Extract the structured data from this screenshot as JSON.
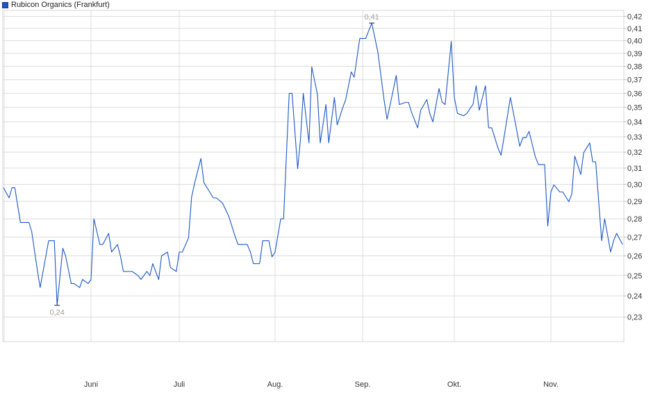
{
  "chart_data": {
    "type": "line",
    "title": "",
    "legend": [
      {
        "name": "Rubicon Organics (Frankfurt)",
        "color": "#1a56c4"
      }
    ],
    "legend_placement": "top-left",
    "y_scale": "log",
    "ylim": [
      0.219,
      0.425
    ],
    "y_axis_side": "right",
    "grid": true,
    "y_ticks": [
      {
        "value": 0.42,
        "label": "0,42"
      },
      {
        "value": 0.41,
        "label": "0,41"
      },
      {
        "value": 0.4,
        "label": "0,40"
      },
      {
        "value": 0.39,
        "label": "0,39"
      },
      {
        "value": 0.38,
        "label": "0,38"
      },
      {
        "value": 0.37,
        "label": "0,37"
      },
      {
        "value": 0.36,
        "label": "0,36"
      },
      {
        "value": 0.35,
        "label": "0,35"
      },
      {
        "value": 0.34,
        "label": "0,34"
      },
      {
        "value": 0.33,
        "label": "0,33"
      },
      {
        "value": 0.32,
        "label": "0,32"
      },
      {
        "value": 0.31,
        "label": "0,31"
      },
      {
        "value": 0.3,
        "label": "0,30"
      },
      {
        "value": 0.29,
        "label": "0,29"
      },
      {
        "value": 0.28,
        "label": "0,28"
      },
      {
        "value": 0.27,
        "label": "0,27"
      },
      {
        "value": 0.26,
        "label": "0,26"
      },
      {
        "value": 0.25,
        "label": "0,25"
      },
      {
        "value": 0.24,
        "label": "0,24"
      },
      {
        "value": 0.23,
        "label": "0,23"
      }
    ],
    "x_ticks": [
      {
        "month": 6,
        "label": "Juni"
      },
      {
        "month": 7,
        "label": "Juli"
      },
      {
        "month": 8,
        "label": "Aug."
      },
      {
        "month": 9,
        "label": "Sep."
      },
      {
        "month": 10,
        "label": "Okt."
      },
      {
        "month": 11,
        "label": "Nov."
      }
    ],
    "annotations": [
      {
        "type": "min",
        "date": "05-20",
        "value": 0.2355,
        "label": "0,24"
      },
      {
        "type": "max",
        "date": "09-04",
        "value": 0.4144,
        "label": "0,41"
      }
    ],
    "series": [
      {
        "name": "Rubicon Organics (Frankfurt)",
        "color": "#1a56c4",
        "points": [
          [
            "05-01",
            0.298
          ],
          [
            "05-03",
            0.292
          ],
          [
            "05-04",
            0.298
          ],
          [
            "05-05",
            0.298
          ],
          [
            "05-07",
            0.278
          ],
          [
            "05-10",
            0.278
          ],
          [
            "05-11",
            0.273
          ],
          [
            "05-13",
            0.2526
          ],
          [
            "05-14",
            0.244
          ],
          [
            "05-17",
            0.268
          ],
          [
            "05-19",
            0.268
          ],
          [
            "05-20",
            0.2355
          ],
          [
            "05-22",
            0.264
          ],
          [
            "05-23",
            0.26
          ],
          [
            "05-25",
            0.246
          ],
          [
            "05-26",
            0.246
          ],
          [
            "05-28",
            0.244
          ],
          [
            "05-29",
            0.248
          ],
          [
            "05-31",
            0.246
          ],
          [
            "06-01",
            0.248
          ],
          [
            "06-02",
            0.28
          ],
          [
            "06-04",
            0.266
          ],
          [
            "06-05",
            0.266
          ],
          [
            "06-07",
            0.272
          ],
          [
            "06-08",
            0.262
          ],
          [
            "06-10",
            0.266
          ],
          [
            "06-11",
            0.26
          ],
          [
            "06-12",
            0.252
          ],
          [
            "06-15",
            0.252
          ],
          [
            "06-17",
            0.25
          ],
          [
            "06-18",
            0.248
          ],
          [
            "06-20",
            0.252
          ],
          [
            "06-21",
            0.25
          ],
          [
            "06-22",
            0.256
          ],
          [
            "06-24",
            0.248
          ],
          [
            "06-25",
            0.26
          ],
          [
            "06-27",
            0.262
          ],
          [
            "06-28",
            0.254
          ],
          [
            "06-30",
            0.252
          ],
          [
            "07-01",
            0.262
          ],
          [
            "07-02",
            0.262
          ],
          [
            "07-04",
            0.2695
          ],
          [
            "07-05",
            0.2925
          ],
          [
            "07-06",
            0.301
          ],
          [
            "07-08",
            0.316
          ],
          [
            "07-09",
            0.301
          ],
          [
            "07-12",
            0.292
          ],
          [
            "07-13",
            0.292
          ],
          [
            "07-15",
            0.289
          ],
          [
            "07-17",
            0.2816
          ],
          [
            "07-19",
            0.2708
          ],
          [
            "07-20",
            0.266
          ],
          [
            "07-23",
            0.266
          ],
          [
            "07-24",
            0.262
          ],
          [
            "07-25",
            0.256
          ],
          [
            "07-27",
            0.256
          ],
          [
            "07-28",
            0.268
          ],
          [
            "07-30",
            0.268
          ],
          [
            "07-31",
            0.2595
          ],
          [
            "08-01",
            0.262
          ],
          [
            "08-03",
            0.28
          ],
          [
            "08-04",
            0.28
          ],
          [
            "08-06",
            0.36
          ],
          [
            "08-07",
            0.36
          ],
          [
            "08-09",
            0.3096
          ],
          [
            "08-10",
            0.3287
          ],
          [
            "08-11",
            0.36
          ],
          [
            "08-13",
            0.326
          ],
          [
            "08-14",
            0.3796
          ],
          [
            "08-16",
            0.359
          ],
          [
            "08-17",
            0.326
          ],
          [
            "08-19",
            0.352
          ],
          [
            "08-20",
            0.326
          ],
          [
            "08-22",
            0.357
          ],
          [
            "08-23",
            0.338
          ],
          [
            "08-25",
            0.35
          ],
          [
            "08-26",
            0.3555
          ],
          [
            "08-28",
            0.3758
          ],
          [
            "08-29",
            0.3718
          ],
          [
            "08-31",
            0.4018
          ],
          [
            "09-02",
            0.4018
          ],
          [
            "09-04",
            0.4144
          ],
          [
            "09-06",
            0.3908
          ],
          [
            "09-08",
            0.3555
          ],
          [
            "09-09",
            0.3418
          ],
          [
            "09-11",
            0.3622
          ],
          [
            "09-12",
            0.3732
          ],
          [
            "09-13",
            0.352
          ],
          [
            "09-15",
            0.3535
          ],
          [
            "09-16",
            0.3535
          ],
          [
            "09-17",
            0.3466
          ],
          [
            "09-19",
            0.336
          ],
          [
            "09-20",
            0.348
          ],
          [
            "09-22",
            0.3555
          ],
          [
            "09-23",
            0.3455
          ],
          [
            "09-24",
            0.34
          ],
          [
            "09-26",
            0.3635
          ],
          [
            "09-27",
            0.3537
          ],
          [
            "09-28",
            0.352
          ],
          [
            "09-30",
            0.3994
          ],
          [
            "10-01",
            0.357
          ],
          [
            "10-02",
            0.3458
          ],
          [
            "10-04",
            0.3442
          ],
          [
            "10-05",
            0.3458
          ],
          [
            "10-07",
            0.3522
          ],
          [
            "10-08",
            0.3655
          ],
          [
            "10-09",
            0.348
          ],
          [
            "10-11",
            0.3655
          ],
          [
            "10-12",
            0.336
          ],
          [
            "10-13",
            0.336
          ],
          [
            "10-15",
            0.3227
          ],
          [
            "10-16",
            0.318
          ],
          [
            "10-17",
            0.33
          ],
          [
            "10-19",
            0.357
          ],
          [
            "10-20",
            0.3458
          ],
          [
            "10-22",
            0.3238
          ],
          [
            "10-23",
            0.3294
          ],
          [
            "10-24",
            0.3294
          ],
          [
            "10-25",
            0.3336
          ],
          [
            "10-27",
            0.317
          ],
          [
            "10-28",
            0.3121
          ],
          [
            "10-30",
            0.3121
          ],
          [
            "10-31",
            0.276
          ],
          [
            "11-01",
            0.2955
          ],
          [
            "11-02",
            0.2997
          ],
          [
            "11-04",
            0.2955
          ],
          [
            "11-05",
            0.2955
          ],
          [
            "11-07",
            0.2898
          ],
          [
            "11-08",
            0.2942
          ],
          [
            "11-09",
            0.3175
          ],
          [
            "11-11",
            0.306
          ],
          [
            "11-12",
            0.3197
          ],
          [
            "11-14",
            0.326
          ],
          [
            "11-15",
            0.3139
          ],
          [
            "11-16",
            0.3139
          ],
          [
            "11-18",
            0.268
          ],
          [
            "11-19",
            0.28
          ],
          [
            "11-21",
            0.262
          ],
          [
            "11-22",
            0.268
          ],
          [
            "11-23",
            0.272
          ],
          [
            "11-25",
            0.266
          ]
        ]
      }
    ]
  }
}
